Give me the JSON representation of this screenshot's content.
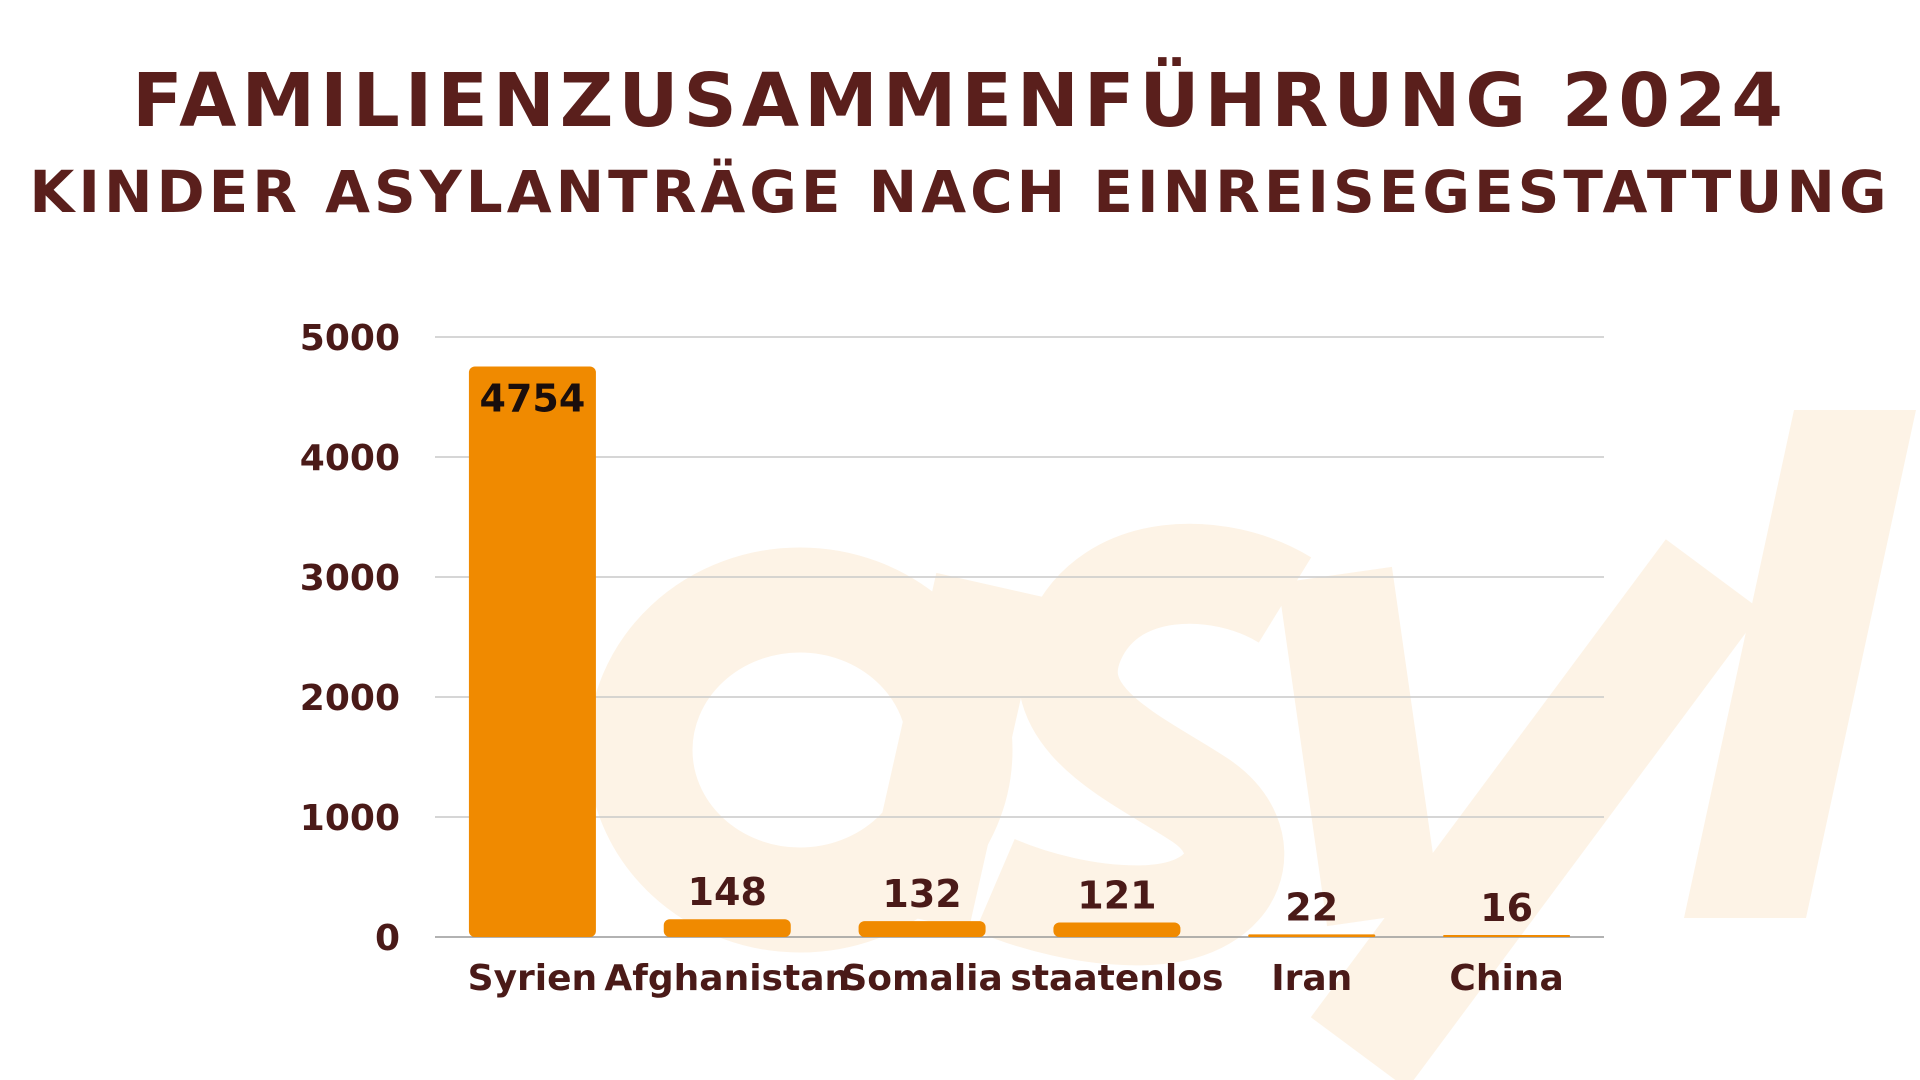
{
  "colors": {
    "title": "#5a1f1c",
    "bar": "#f08a00",
    "grid": "#c9c9c9",
    "watermark": "#fdf3e6",
    "label": "#4a1a18"
  },
  "watermark": "asyl",
  "chart_data": {
    "type": "bar",
    "title": "FAMILIENZUSAMMENFÜHRUNG 2024",
    "subtitle": "KINDER ASYLANTRÄGE NACH EINREISEGESTATTUNG",
    "categories": [
      "Syrien",
      "Afghanistan",
      "Somalia",
      "staatenlos",
      "Iran",
      "China"
    ],
    "values": [
      4754,
      148,
      132,
      121,
      22,
      16
    ],
    "data_labels": [
      "4754",
      "148",
      "132",
      "121",
      "22",
      "16"
    ],
    "xlabel": "",
    "ylabel": "",
    "ylim": [
      0,
      5000
    ],
    "yticks": [
      0,
      1000,
      2000,
      3000,
      4000,
      5000
    ],
    "ytick_labels": [
      "0",
      "1000",
      "2000",
      "3000",
      "4000",
      "5000"
    ],
    "grid": true,
    "legend": "none"
  }
}
